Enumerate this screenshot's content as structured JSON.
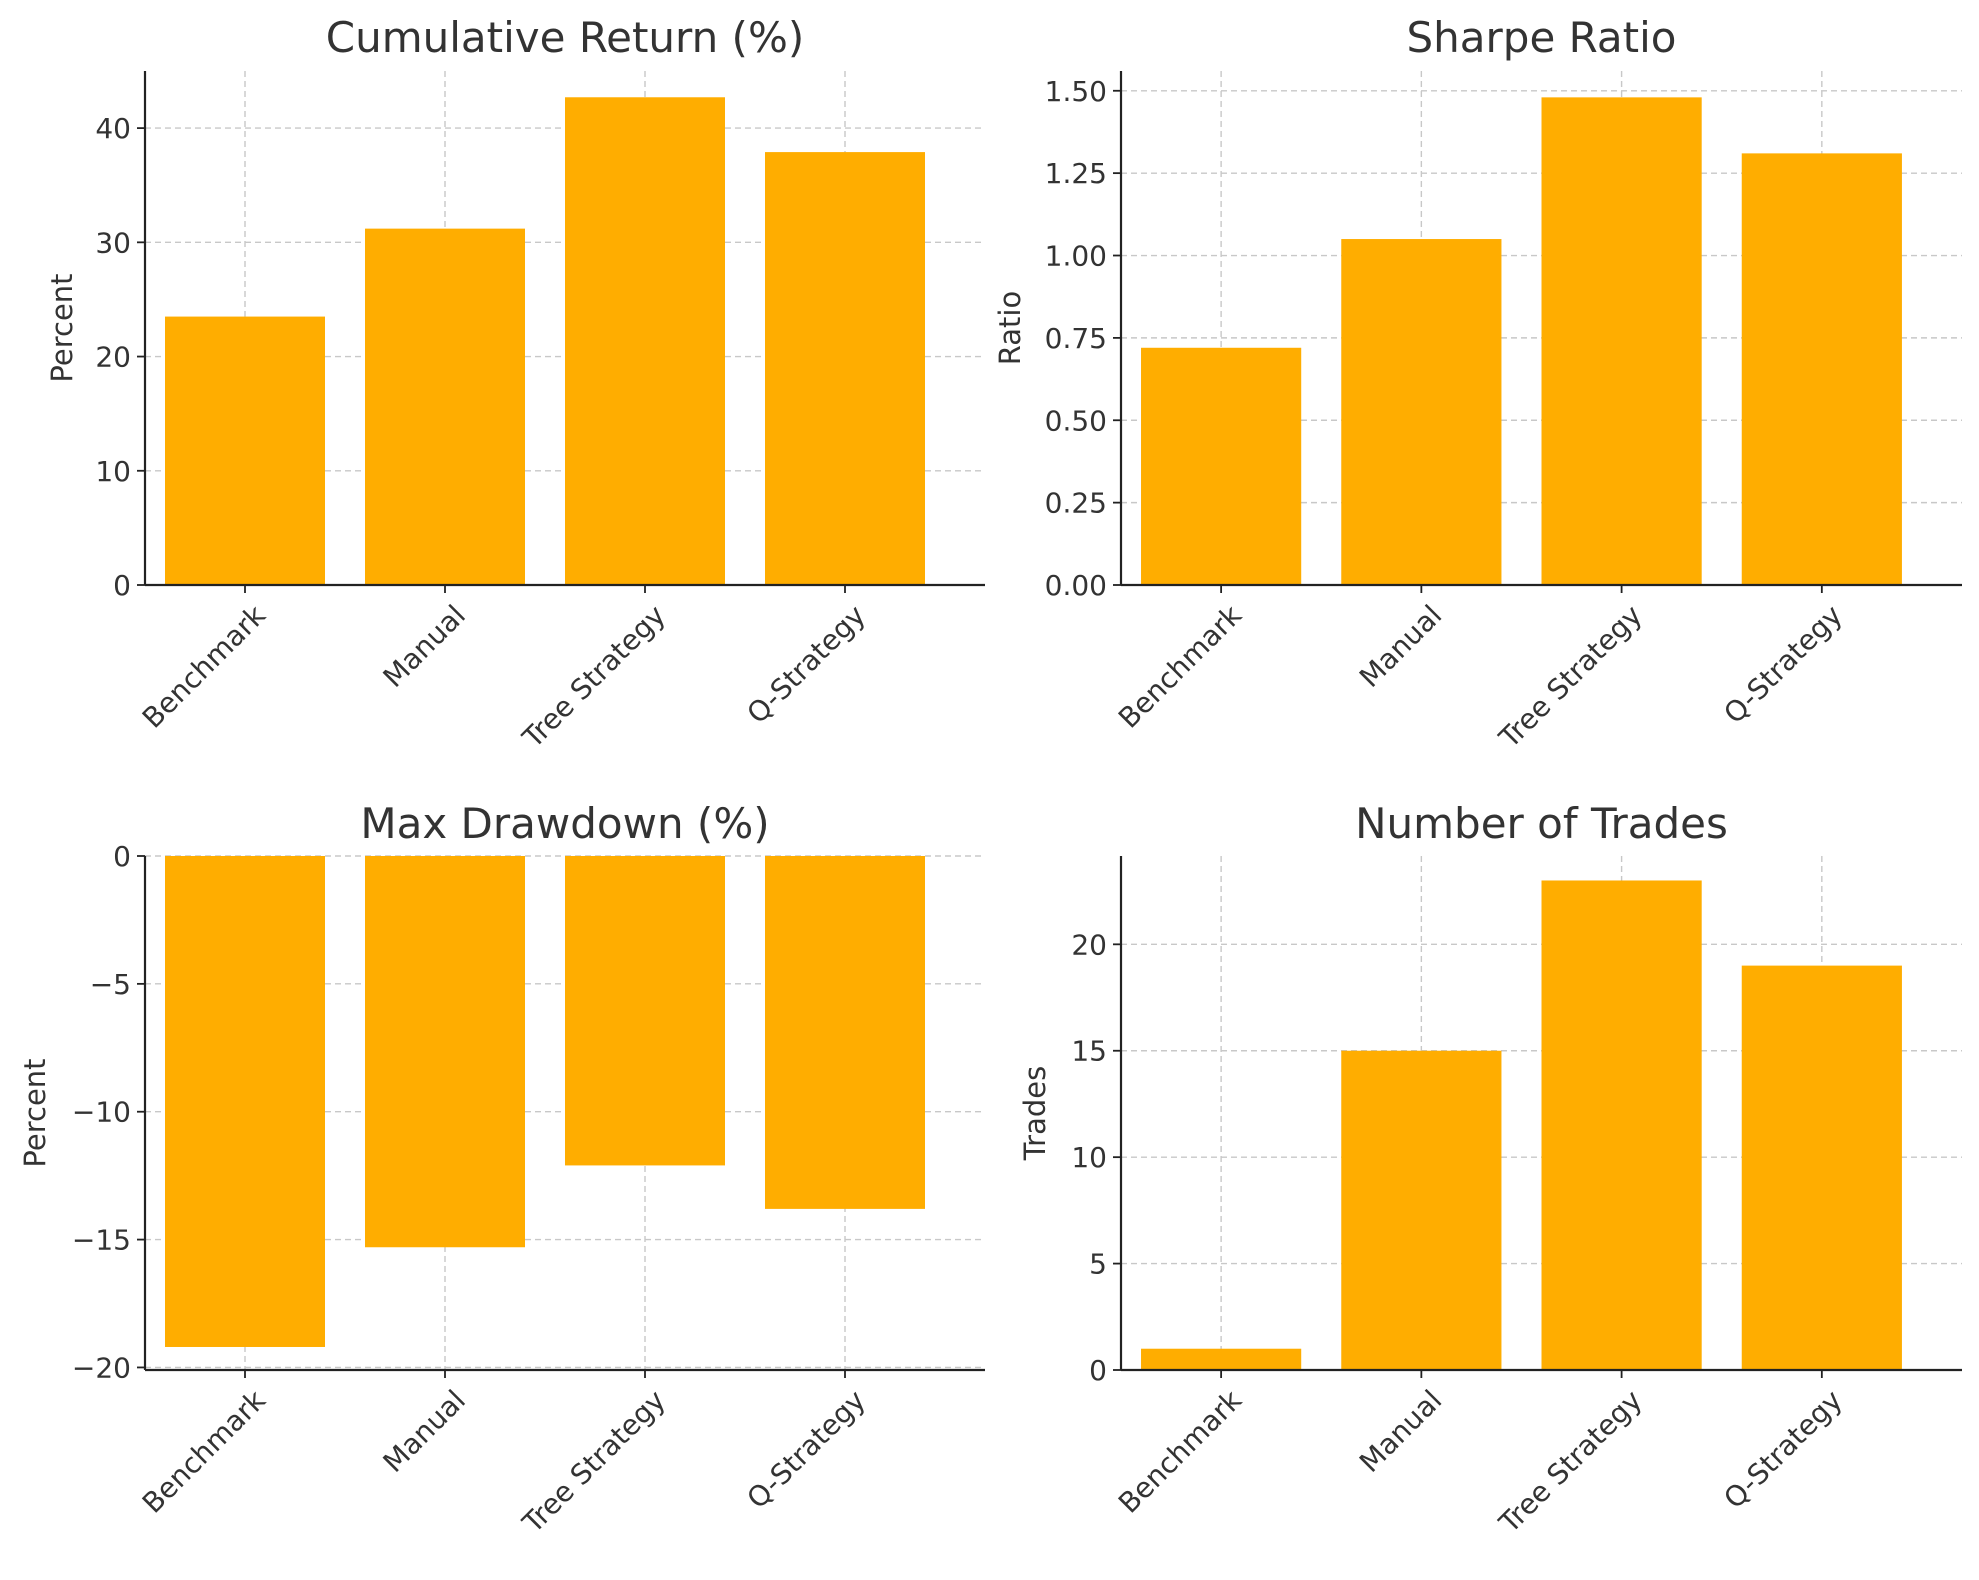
{
  "colors": {
    "bar": "#ffad00",
    "text": "#333333"
  },
  "chart_data": [
    {
      "type": "bar",
      "title": "Cumulative Return (%)",
      "xlabel": "",
      "ylabel": "Percent",
      "categories": [
        "Benchmark",
        "Manual",
        "Tree Strategy",
        "Q-Strategy"
      ],
      "values": [
        23.5,
        31.2,
        42.7,
        37.9
      ],
      "ylim": [
        0,
        45
      ],
      "yticks": [
        0,
        10,
        20,
        30,
        40
      ],
      "ytick_labels": [
        "0",
        "10",
        "20",
        "30",
        "40"
      ],
      "grid": true
    },
    {
      "type": "bar",
      "title": "Sharpe Ratio",
      "xlabel": "",
      "ylabel": "Ratio",
      "categories": [
        "Benchmark",
        "Manual",
        "Tree Strategy",
        "Q-Strategy"
      ],
      "values": [
        0.72,
        1.05,
        1.48,
        1.31
      ],
      "ylim": [
        0,
        1.56
      ],
      "yticks": [
        0,
        0.25,
        0.5,
        0.75,
        1.0,
        1.25,
        1.5
      ],
      "ytick_labels": [
        "0.00",
        "0.25",
        "0.50",
        "0.75",
        "1.00",
        "1.25",
        "1.50"
      ],
      "grid": true
    },
    {
      "type": "bar",
      "title": "Max Drawdown (%)",
      "xlabel": "",
      "ylabel": "Percent",
      "categories": [
        "Benchmark",
        "Manual",
        "Tree Strategy",
        "Q-Strategy"
      ],
      "values": [
        -19.2,
        -15.3,
        -12.1,
        -13.8
      ],
      "ylim": [
        -20.1,
        0
      ],
      "yticks": [
        -20,
        -15,
        -10,
        -5,
        0
      ],
      "ytick_labels": [
        "−20",
        "−15",
        "−10",
        "−5",
        "0"
      ],
      "grid": true
    },
    {
      "type": "bar",
      "title": "Number of Trades",
      "xlabel": "",
      "ylabel": "Trades",
      "categories": [
        "Benchmark",
        "Manual",
        "Tree Strategy",
        "Q-Strategy"
      ],
      "values": [
        1,
        15,
        23,
        19
      ],
      "ylim": [
        0,
        24.15
      ],
      "yticks": [
        0,
        5,
        10,
        15,
        20
      ],
      "ytick_labels": [
        "0",
        "5",
        "10",
        "15",
        "20"
      ],
      "grid": true
    }
  ]
}
